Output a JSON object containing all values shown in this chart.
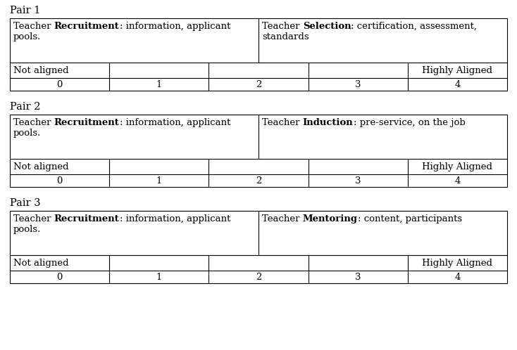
{
  "pairs": [
    {
      "label": "Pair 1",
      "left_line1": "Teacher ",
      "left_bold": "Recruitment",
      "left_after_bold": ": information, applicant",
      "left_line2": "pools.",
      "right_line1": "Teacher ",
      "right_bold": "Selection",
      "right_after_bold": ": certification, assessment,",
      "right_line2": "standards"
    },
    {
      "label": "Pair 2",
      "left_line1": "Teacher ",
      "left_bold": "Recruitment",
      "left_after_bold": ": information, applicant",
      "left_line2": "pools.",
      "right_line1": "Teacher ",
      "right_bold": "Induction",
      "right_after_bold": ": pre-service, on the job",
      "right_line2": ""
    },
    {
      "label": "Pair 3",
      "left_line1": "Teacher ",
      "left_bold": "Recruitment",
      "left_after_bold": ": information, applicant",
      "left_line2": "pools.",
      "right_line1": "Teacher ",
      "right_bold": "Mentoring",
      "right_after_bold": ": content, participants",
      "right_line2": ""
    }
  ],
  "scale_labels_left": "Not aligned",
  "scale_labels_right": "Highly Aligned",
  "scale_values": [
    "0",
    "1",
    "2",
    "3",
    "4"
  ],
  "background_color": "#ffffff",
  "border_color": "#000000",
  "text_color": "#000000",
  "font_size": 9.5,
  "label_font_size": 10.5
}
